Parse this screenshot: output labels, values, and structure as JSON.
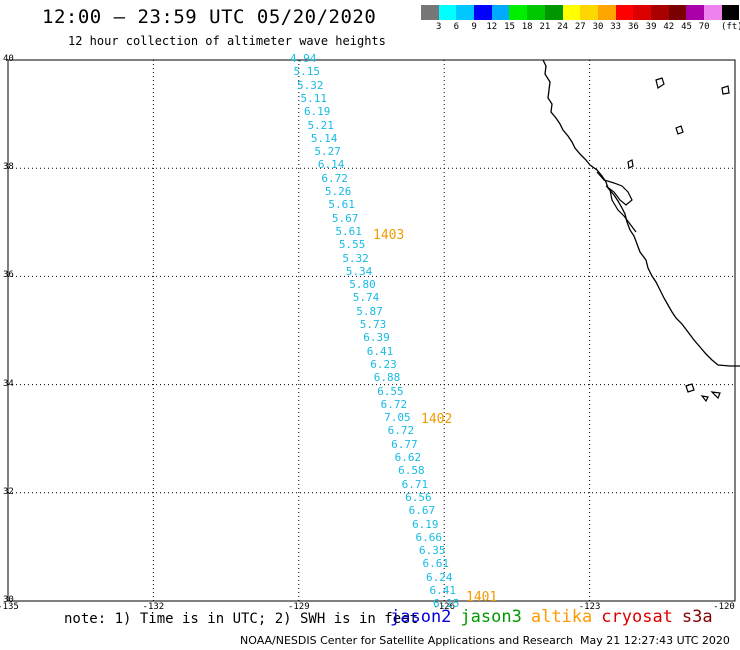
{
  "header": {
    "title": "12:00 – 23:59 UTC 05/20/2020",
    "subtitle": "12 hour collection of altimeter wave heights"
  },
  "color_scale": {
    "unit": "(ft)",
    "colors": [
      "#777777",
      "#00ffff",
      "#00c8ff",
      "#0000ff",
      "#00aaff",
      "#00ee00",
      "#00c800",
      "#009600",
      "#ffff00",
      "#ffd700",
      "#ffa500",
      "#ff0000",
      "#dc0000",
      "#aa0000",
      "#7a0000",
      "#aa00aa",
      "#ee82ee",
      "#000000"
    ],
    "labels": [
      "3",
      "6",
      "9",
      "12",
      "15",
      "18",
      "21",
      "24",
      "27",
      "30",
      "33",
      "36",
      "39",
      "42",
      "45",
      "70"
    ]
  },
  "axes": {
    "lat_labels": [
      "40",
      "38",
      "36",
      "34",
      "32",
      "30"
    ],
    "lon_labels": [
      "-135",
      "-132",
      "-129",
      "-126",
      "-123",
      "-120"
    ]
  },
  "chart_data": {
    "type": "scatter",
    "xlabel": "",
    "ylabel": "",
    "xlim": [
      -135,
      -120
    ],
    "ylim": [
      30,
      40
    ],
    "swh_values": [
      "4.94",
      "5.15",
      "5.32",
      "5.11",
      "6.19",
      "5.21",
      "5.14",
      "5.27",
      "6.14",
      "6.72",
      "5.26",
      "5.61",
      "5.67",
      "5.61",
      "5.55",
      "5.32",
      "5.34",
      "5.80",
      "5.74",
      "5.87",
      "5.73",
      "6.39",
      "6.41",
      "6.23",
      "6.88",
      "6.55",
      "6.72",
      "7.05",
      "6.72",
      "6.77",
      "6.62",
      "6.58",
      "6.71",
      "6.56",
      "6.67",
      "6.19",
      "6.66",
      "6.35",
      "6.61",
      "6.24",
      "6.41",
      "6.15"
    ],
    "pass_labels": [
      {
        "text": "1403"
      },
      {
        "text": "1402"
      },
      {
        "text": "1401"
      }
    ]
  },
  "footer": {
    "note": "note: 1) Time is in UTC; 2) SWH is in feet",
    "satellites": [
      {
        "name": "jason2",
        "color": "#0000dd"
      },
      {
        "name": "jason3",
        "color": "#009900"
      },
      {
        "name": "altika",
        "color": "#ff9900"
      },
      {
        "name": "cryosat",
        "color": "#dd0000"
      },
      {
        "name": "s3a",
        "color": "#880000"
      }
    ],
    "credit": "NOAA/NESDIS Center for Satellite Applications and Research",
    "timestamp": "May 21 12:27:43 UTC 2020"
  }
}
